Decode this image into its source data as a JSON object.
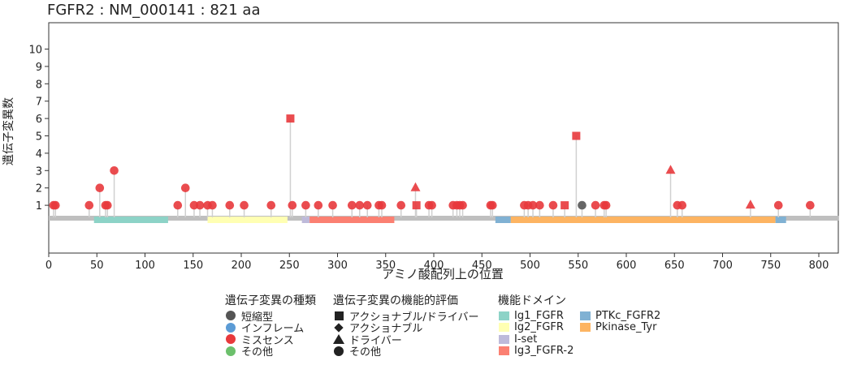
{
  "chart_data": {
    "type": "lollipop",
    "title": "FGFR2 : NM_000141 : 821 aa",
    "xlabel": "アミノ酸配列上の位置",
    "ylabel": "遺伝子変異数",
    "xlim": [
      0,
      821
    ],
    "ylim": [
      0,
      10
    ],
    "xticks": [
      0,
      50,
      100,
      150,
      200,
      250,
      300,
      350,
      400,
      450,
      500,
      550,
      600,
      650,
      700,
      750,
      800
    ],
    "yticks": [
      1,
      2,
      3,
      4,
      5,
      6,
      7,
      8,
      9,
      10
    ],
    "protein_length": 821,
    "domains": [
      {
        "name": "Ig1_FGFR",
        "start": 47,
        "end": 124,
        "color": "#8dd3c7"
      },
      {
        "name": "Ig2_FGFR",
        "start": 165,
        "end": 248,
        "color": "#ffffb3"
      },
      {
        "name": "I-set",
        "start": 263,
        "end": 271,
        "color": "#bebada"
      },
      {
        "name": "Ig3_FGFR-2",
        "start": 271,
        "end": 359,
        "color": "#fb8072"
      },
      {
        "name": "PTKc_FGFR2",
        "start": 464,
        "end": 480,
        "color": "#80b1d3"
      },
      {
        "name": "Pkinase_Tyr",
        "start": 480,
        "end": 755,
        "color": "#fdb462"
      },
      {
        "name": "PTKc_FGFR2",
        "start": 755,
        "end": 766,
        "color": "#80b1d3"
      }
    ],
    "mutations": [
      {
        "pos": 5,
        "count": 1,
        "type": "missense",
        "eval": "other"
      },
      {
        "pos": 7,
        "count": 1,
        "type": "missense",
        "eval": "other"
      },
      {
        "pos": 42,
        "count": 1,
        "type": "missense",
        "eval": "other"
      },
      {
        "pos": 53,
        "count": 2,
        "type": "missense",
        "eval": "other"
      },
      {
        "pos": 59,
        "count": 1,
        "type": "missense",
        "eval": "other"
      },
      {
        "pos": 61,
        "count": 1,
        "type": "missense",
        "eval": "other"
      },
      {
        "pos": 68,
        "count": 3,
        "type": "missense",
        "eval": "other"
      },
      {
        "pos": 134,
        "count": 1,
        "type": "missense",
        "eval": "other"
      },
      {
        "pos": 142,
        "count": 2,
        "type": "missense",
        "eval": "other"
      },
      {
        "pos": 151,
        "count": 1,
        "type": "missense",
        "eval": "other"
      },
      {
        "pos": 157,
        "count": 1,
        "type": "missense",
        "eval": "other"
      },
      {
        "pos": 165,
        "count": 1,
        "type": "missense",
        "eval": "other"
      },
      {
        "pos": 170,
        "count": 1,
        "type": "missense",
        "eval": "other"
      },
      {
        "pos": 188,
        "count": 1,
        "type": "missense",
        "eval": "other"
      },
      {
        "pos": 203,
        "count": 1,
        "type": "missense",
        "eval": "other"
      },
      {
        "pos": 231,
        "count": 1,
        "type": "missense",
        "eval": "other"
      },
      {
        "pos": 251,
        "count": 6,
        "type": "missense",
        "eval": "actionable_driver"
      },
      {
        "pos": 253,
        "count": 1,
        "type": "missense",
        "eval": "other"
      },
      {
        "pos": 267,
        "count": 1,
        "type": "missense",
        "eval": "other"
      },
      {
        "pos": 280,
        "count": 1,
        "type": "missense",
        "eval": "other"
      },
      {
        "pos": 295,
        "count": 1,
        "type": "missense",
        "eval": "other"
      },
      {
        "pos": 315,
        "count": 1,
        "type": "missense",
        "eval": "other"
      },
      {
        "pos": 323,
        "count": 1,
        "type": "missense",
        "eval": "other"
      },
      {
        "pos": 331,
        "count": 1,
        "type": "missense",
        "eval": "other"
      },
      {
        "pos": 343,
        "count": 1,
        "type": "missense",
        "eval": "other"
      },
      {
        "pos": 346,
        "count": 1,
        "type": "missense",
        "eval": "other"
      },
      {
        "pos": 366,
        "count": 1,
        "type": "missense",
        "eval": "other"
      },
      {
        "pos": 381,
        "count": 2,
        "type": "missense",
        "eval": "driver"
      },
      {
        "pos": 382,
        "count": 1,
        "type": "missense",
        "eval": "actionable_driver"
      },
      {
        "pos": 395,
        "count": 1,
        "type": "missense",
        "eval": "other"
      },
      {
        "pos": 398,
        "count": 1,
        "type": "missense",
        "eval": "other"
      },
      {
        "pos": 420,
        "count": 1,
        "type": "missense",
        "eval": "other"
      },
      {
        "pos": 424,
        "count": 1,
        "type": "missense",
        "eval": "other"
      },
      {
        "pos": 427,
        "count": 1,
        "type": "missense",
        "eval": "other"
      },
      {
        "pos": 430,
        "count": 1,
        "type": "missense",
        "eval": "other"
      },
      {
        "pos": 459,
        "count": 1,
        "type": "missense",
        "eval": "other"
      },
      {
        "pos": 461,
        "count": 1,
        "type": "missense",
        "eval": "other"
      },
      {
        "pos": 494,
        "count": 1,
        "type": "missense",
        "eval": "other"
      },
      {
        "pos": 498,
        "count": 1,
        "type": "missense",
        "eval": "other"
      },
      {
        "pos": 503,
        "count": 1,
        "type": "missense",
        "eval": "other"
      },
      {
        "pos": 510,
        "count": 1,
        "type": "missense",
        "eval": "other"
      },
      {
        "pos": 524,
        "count": 1,
        "type": "missense",
        "eval": "other"
      },
      {
        "pos": 536,
        "count": 1,
        "type": "missense",
        "eval": "actionable_driver"
      },
      {
        "pos": 548,
        "count": 5,
        "type": "missense",
        "eval": "actionable_driver"
      },
      {
        "pos": 554,
        "count": 1,
        "type": "truncating",
        "eval": "other"
      },
      {
        "pos": 568,
        "count": 1,
        "type": "missense",
        "eval": "other"
      },
      {
        "pos": 577,
        "count": 1,
        "type": "missense",
        "eval": "other"
      },
      {
        "pos": 579,
        "count": 1,
        "type": "missense",
        "eval": "other"
      },
      {
        "pos": 646,
        "count": 3,
        "type": "missense",
        "eval": "driver"
      },
      {
        "pos": 653,
        "count": 1,
        "type": "missense",
        "eval": "other"
      },
      {
        "pos": 658,
        "count": 1,
        "type": "missense",
        "eval": "other"
      },
      {
        "pos": 729,
        "count": 1,
        "type": "missense",
        "eval": "driver"
      },
      {
        "pos": 758,
        "count": 1,
        "type": "missense",
        "eval": "other"
      },
      {
        "pos": 791,
        "count": 1,
        "type": "missense",
        "eval": "other"
      }
    ],
    "legend": {
      "type_title": "遺伝子変異の種類",
      "types": [
        {
          "label": "短縮型",
          "color": "#555555"
        },
        {
          "label": "インフレーム",
          "color": "#5b9bd5"
        },
        {
          "label": "ミスセンス",
          "color": "#e8393c"
        },
        {
          "label": "その他",
          "color": "#6cc06c"
        }
      ],
      "eval_title": "遺伝子変異の機能的評価",
      "evals": [
        {
          "label": "アクショナブル/ドライバー",
          "shape": "square"
        },
        {
          "label": "アクショナブル",
          "shape": "diamond"
        },
        {
          "label": "ドライバー",
          "shape": "triangle"
        },
        {
          "label": "その他",
          "shape": "circle"
        }
      ],
      "domain_title": "機能ドメイン",
      "domains": [
        {
          "label": "Ig1_FGFR",
          "color": "#8dd3c7"
        },
        {
          "label": "Ig2_FGFR",
          "color": "#ffffb3"
        },
        {
          "label": "I-set",
          "color": "#bebada"
        },
        {
          "label": "Ig3_FGFR-2",
          "color": "#fb8072"
        },
        {
          "label": "PTKc_FGFR2",
          "color": "#80b1d3"
        },
        {
          "label": "Pkinase_Tyr",
          "color": "#fdb462"
        }
      ]
    }
  }
}
